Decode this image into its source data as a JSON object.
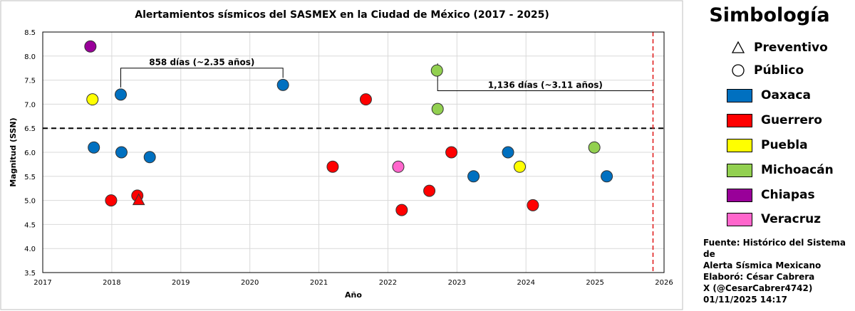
{
  "chart_data": {
    "type": "scatter",
    "title": "Alertamientos sísmicos del SASMEX en la Ciudad de México (2017 - 2025)",
    "xlabel": "Año",
    "ylabel": "Magnitud (SSN)",
    "xlim": [
      2017,
      2026
    ],
    "ylim": [
      3.5,
      8.5
    ],
    "x_ticks": [
      "2017",
      "2018",
      "2019",
      "2020",
      "2021",
      "2022",
      "2023",
      "2024",
      "2025",
      "2026"
    ],
    "y_ticks": [
      "3.5",
      "4.0",
      "4.5",
      "5.0",
      "5.5",
      "6.0",
      "6.5",
      "7.0",
      "7.5",
      "8.0",
      "8.5"
    ],
    "grid": true,
    "threshold_line": 6.5,
    "vertical_line": 2025.84,
    "colors": {
      "Oaxaca": "#0070c0",
      "Guerrero": "#ff0000",
      "Puebla": "#ffff00",
      "Michoacán": "#92d050",
      "Chiapas": "#990099",
      "Veracruz": "#ff66cc"
    },
    "points": [
      {
        "x": 2017.69,
        "y": 8.2,
        "region": "Chiapas",
        "marker": "circle"
      },
      {
        "x": 2017.72,
        "y": 7.1,
        "region": "Puebla",
        "marker": "circle"
      },
      {
        "x": 2017.74,
        "y": 6.1,
        "region": "Oaxaca",
        "marker": "circle"
      },
      {
        "x": 2017.99,
        "y": 5.0,
        "region": "Guerrero",
        "marker": "circle"
      },
      {
        "x": 2018.13,
        "y": 7.2,
        "region": "Oaxaca",
        "marker": "circle"
      },
      {
        "x": 2018.14,
        "y": 6.0,
        "region": "Oaxaca",
        "marker": "circle"
      },
      {
        "x": 2018.37,
        "y": 5.1,
        "region": "Guerrero",
        "marker": "circle"
      },
      {
        "x": 2018.39,
        "y": 5.0,
        "region": "Guerrero",
        "marker": "triangle"
      },
      {
        "x": 2018.55,
        "y": 5.9,
        "region": "Oaxaca",
        "marker": "circle"
      },
      {
        "x": 2020.48,
        "y": 7.4,
        "region": "Oaxaca",
        "marker": "circle"
      },
      {
        "x": 2021.2,
        "y": 5.7,
        "region": "Guerrero",
        "marker": "circle"
      },
      {
        "x": 2021.68,
        "y": 7.1,
        "region": "Guerrero",
        "marker": "circle"
      },
      {
        "x": 2022.15,
        "y": 5.7,
        "region": "Veracruz",
        "marker": "circle"
      },
      {
        "x": 2022.2,
        "y": 4.8,
        "region": "Guerrero",
        "marker": "circle"
      },
      {
        "x": 2022.6,
        "y": 5.2,
        "region": "Guerrero",
        "marker": "circle"
      },
      {
        "x": 2022.71,
        "y": 7.7,
        "region": "Michoacán",
        "marker": "circle"
      },
      {
        "x": 2022.72,
        "y": 6.9,
        "region": "Michoacán",
        "marker": "circle"
      },
      {
        "x": 2022.92,
        "y": 6.0,
        "region": "Guerrero",
        "marker": "circle"
      },
      {
        "x": 2023.24,
        "y": 5.5,
        "region": "Oaxaca",
        "marker": "circle"
      },
      {
        "x": 2023.74,
        "y": 6.0,
        "region": "Oaxaca",
        "marker": "circle"
      },
      {
        "x": 2023.91,
        "y": 5.7,
        "region": "Puebla",
        "marker": "circle"
      },
      {
        "x": 2024.1,
        "y": 4.9,
        "region": "Guerrero",
        "marker": "circle"
      },
      {
        "x": 2024.99,
        "y": 6.1,
        "region": "Michoacán",
        "marker": "circle"
      },
      {
        "x": 2025.17,
        "y": 5.5,
        "region": "Oaxaca",
        "marker": "circle"
      }
    ],
    "annotations": [
      {
        "text": "858 días (~2.35 años)",
        "x_start": 2018.13,
        "x_end": 2020.48,
        "y_bracket": 7.75
      },
      {
        "text": "1,136 días (~3.11 años)",
        "x_start": 2022.72,
        "x_end": 2025.84,
        "y_bracket": 7.28
      }
    ]
  },
  "legend": {
    "title": "Simbología",
    "shapes": [
      {
        "label": "Preventivo",
        "shape": "triangle"
      },
      {
        "label": "Público",
        "shape": "circle"
      }
    ],
    "regions": [
      {
        "label": "Oaxaca",
        "color": "#0070c0"
      },
      {
        "label": "Guerrero",
        "color": "#ff0000"
      },
      {
        "label": "Puebla",
        "color": "#ffff00"
      },
      {
        "label": "Michoacán",
        "color": "#92d050"
      },
      {
        "label": "Chiapas",
        "color": "#990099"
      },
      {
        "label": "Veracruz",
        "color": "#ff66cc"
      }
    ]
  },
  "source_note": {
    "line1": "Fuente: Histórico del Sistema de",
    "line2": "Alerta Sísmica Mexicano"
  },
  "credit_note": {
    "line1": "Elaboró: César Cabrera",
    "line2": "X (@CesarCabrer4742)",
    "line3": "01/11/2025 14:17"
  }
}
